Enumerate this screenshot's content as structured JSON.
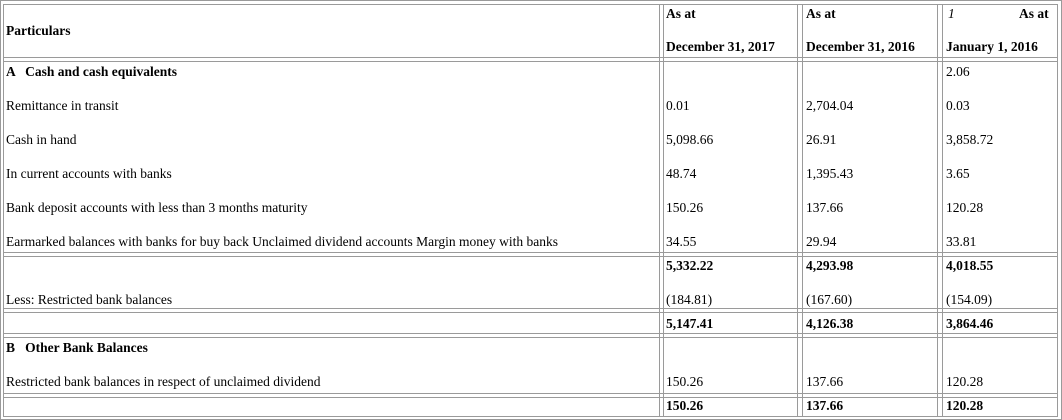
{
  "header": {
    "particulars": "Particulars",
    "col1_top": "As at",
    "col1_bottom": "December 31, 2017",
    "col2_top": "As at",
    "col2_bottom": "December 31, 2016",
    "col3_mark": "1",
    "col3_top": "As at",
    "col3_bottom": "January 1, 2016"
  },
  "section_a": {
    "title": "A   Cash and cash equivalents",
    "title_c3": "2.06",
    "rows": [
      {
        "label": "Remittance in transit",
        "c1": "0.01",
        "c2": "2,704.04",
        "c3": "0.03"
      },
      {
        "label": "Cash in hand",
        "c1": "5,098.66",
        "c2": "26.91",
        "c3": "3,858.72"
      },
      {
        "label": "In current accounts with banks",
        "c1": "48.74",
        "c2": "1,395.43",
        "c3": "3.65"
      },
      {
        "label": "Bank deposit accounts with less than 3 months maturity",
        "c1": "150.26",
        "c2": "137.66",
        "c3": "120.28"
      },
      {
        "label": "Earmarked balances with banks for buy back Unclaimed dividend accounts Margin money with banks",
        "c1": "34.55",
        "c2": "29.94",
        "c3": "33.81"
      }
    ],
    "subtotal": {
      "c1": "5,332.22",
      "c2": "4,293.98",
      "c3": "4,018.55"
    },
    "less": {
      "label": "Less: Restricted bank balances",
      "c1": "(184.81)",
      "c2": "(167.60)",
      "c3": "(154.09)"
    },
    "total": {
      "c1": "5,147.41",
      "c2": "4,126.38",
      "c3": "3,864.46"
    }
  },
  "section_b": {
    "title": "B   Other Bank Balances",
    "row": {
      "label": "Restricted bank balances in respect of unclaimed dividend",
      "c1": "150.26",
      "c2": "137.66",
      "c3": "120.28"
    },
    "total": {
      "c1": "150.26",
      "c2": "137.66",
      "c3": "120.28"
    }
  }
}
